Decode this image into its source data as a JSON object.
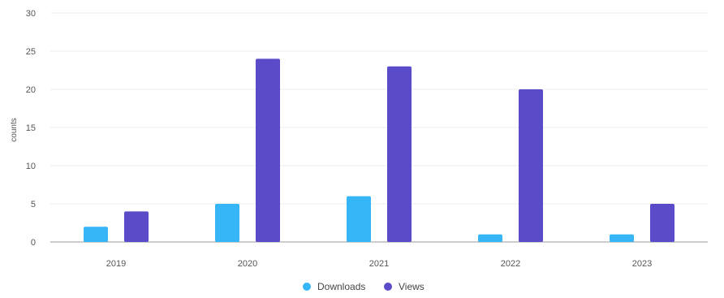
{
  "chart_data": {
    "type": "bar",
    "title": "",
    "xlabel": "",
    "ylabel": "counts",
    "ylim": [
      0,
      30
    ],
    "yticks": [
      0,
      5,
      10,
      15,
      20,
      25,
      30
    ],
    "grid": true,
    "legend_position": "bottom-center",
    "categories": [
      "2019",
      "2020",
      "2021",
      "2022",
      "2023"
    ],
    "series": [
      {
        "name": "Downloads",
        "color": "#36b6f7",
        "values": [
          2,
          5,
          6,
          1,
          1
        ]
      },
      {
        "name": "Views",
        "color": "#5a4cc8",
        "values": [
          4,
          24,
          23,
          20,
          5
        ]
      }
    ]
  }
}
